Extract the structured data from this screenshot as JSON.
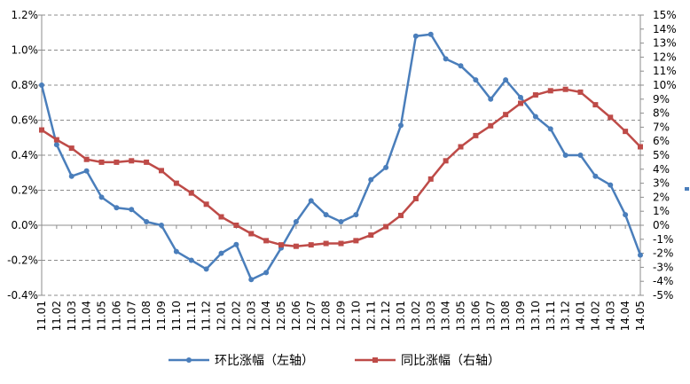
{
  "chart_data": {
    "type": "line",
    "title": "",
    "categories": [
      "11.01",
      "11.02",
      "11.03",
      "11.04",
      "11.05",
      "11.06",
      "11.07",
      "11.08",
      "11.09",
      "11.10",
      "11.11",
      "11.12",
      "12.01",
      "12.02",
      "12.03",
      "12.04",
      "12.05",
      "12.06",
      "12.07",
      "12.08",
      "12.09",
      "12.10",
      "12.11",
      "12.12",
      "13.01",
      "13.02",
      "13.03",
      "13.04",
      "13.05",
      "13.06",
      "13.07",
      "13.08",
      "13.09",
      "13.10",
      "13.11",
      "13.12",
      "14.01",
      "14.02",
      "14.03",
      "14.04",
      "14.05"
    ],
    "y_left": {
      "min": -0.4,
      "max": 1.2,
      "step": 0.2,
      "tick_labels": [
        "1.2%",
        "1.0%",
        "0.8%",
        "0.6%",
        "0.4%",
        "0.2%",
        "0.0%",
        "-0.2%",
        "-0.4%"
      ]
    },
    "y_right": {
      "min": -5,
      "max": 15,
      "step": 1,
      "tick_labels": [
        "15%",
        "14%",
        "13%",
        "12%",
        "11%",
        "10%",
        "9%",
        "8%",
        "7%",
        "6%",
        "5%",
        "4%",
        "3%",
        "2%",
        "1%",
        "0%",
        "-1%",
        "-2%",
        "-3%",
        "-4%",
        "-5%"
      ]
    },
    "gridlines": true,
    "legend_position": "bottom",
    "series": [
      {
        "name": "环比涨幅（左轴）",
        "axis": "left",
        "color": "#4A7EBB",
        "marker": "circle",
        "values": [
          0.8,
          0.46,
          0.28,
          0.31,
          0.16,
          0.1,
          0.09,
          0.02,
          0.0,
          -0.15,
          -0.2,
          -0.25,
          -0.16,
          -0.11,
          -0.31,
          -0.27,
          -0.13,
          0.02,
          0.14,
          0.06,
          0.02,
          0.06,
          0.26,
          0.33,
          0.57,
          1.08,
          1.09,
          0.95,
          0.91,
          0.83,
          0.72,
          0.83,
          0.73,
          0.62,
          0.55,
          0.4,
          0.4,
          0.28,
          0.23,
          0.06,
          -0.17
        ]
      },
      {
        "name": "同比涨幅（右轴）",
        "axis": "right",
        "color": "#BE4B48",
        "marker": "square",
        "values": [
          6.8,
          6.1,
          5.5,
          4.7,
          4.5,
          4.5,
          4.6,
          4.5,
          3.9,
          3.0,
          2.3,
          1.5,
          0.6,
          0.0,
          -0.6,
          -1.1,
          -1.4,
          -1.5,
          -1.4,
          -1.3,
          -1.3,
          -1.1,
          -0.7,
          -0.1,
          0.7,
          1.9,
          3.3,
          4.6,
          5.6,
          6.4,
          7.1,
          7.9,
          8.7,
          9.3,
          9.6,
          9.7,
          9.5,
          8.6,
          7.7,
          6.7,
          5.6
        ]
      }
    ]
  }
}
